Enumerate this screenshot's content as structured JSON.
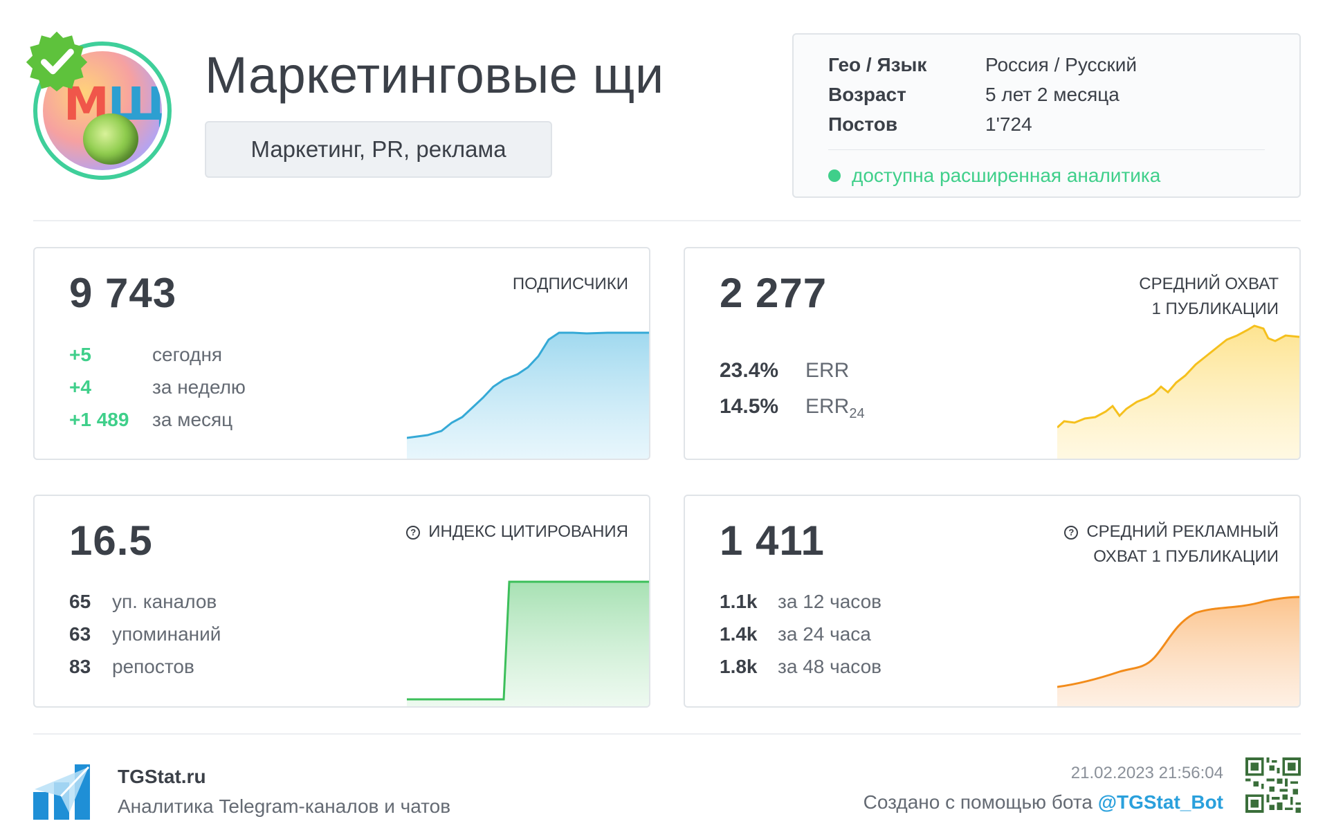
{
  "header": {
    "title": "Маркетинговые щи",
    "category": "Маркетинг, PR, реклама",
    "avatar_letters": [
      "М",
      "Щ"
    ]
  },
  "info": {
    "rows": [
      {
        "key": "Гео / Язык",
        "value": "Россия / Русский"
      },
      {
        "key": "Возраст",
        "value": "5 лет 2 месяца"
      },
      {
        "key": "Постов",
        "value": "1'724"
      }
    ],
    "status": "доступна расширенная аналитика"
  },
  "cards": {
    "subscribers": {
      "value": "9 743",
      "label": "ПОДПИСЧИКИ",
      "stats": [
        {
          "num": "+5",
          "text": "сегодня"
        },
        {
          "num": "+4",
          "text": "за неделю"
        },
        {
          "num": "+1 489",
          "text": "за месяц"
        }
      ],
      "color": "#35a9d6"
    },
    "reach": {
      "value": "2 277",
      "label_line1": "СРЕДНИЙ ОХВАТ",
      "label_line2": "1 ПУБЛИКАЦИИ",
      "err": {
        "num": "23.4%",
        "text": "ERR"
      },
      "err24": {
        "num": "14.5%",
        "text": "ERR",
        "sub": "24"
      },
      "color": "#f5c01d"
    },
    "citation": {
      "value": "16.5",
      "label": "ИНДЕКС ЦИТИРОВАНИЯ",
      "stats": [
        {
          "num": "65",
          "text": "уп. каналов"
        },
        {
          "num": "63",
          "text": "упоминаний"
        },
        {
          "num": "83",
          "text": "репостов"
        }
      ],
      "color": "#3cbf5a"
    },
    "ad_reach": {
      "value": "1 411",
      "label_line1": "СРЕДНИЙ РЕКЛАМНЫЙ",
      "label_line2": "ОХВАТ 1 ПУБЛИКАЦИИ",
      "stats": [
        {
          "num": "1.1k",
          "text": "за 12 часов"
        },
        {
          "num": "1.4k",
          "text": "за 24 часа"
        },
        {
          "num": "1.8k",
          "text": "за 48 часов"
        }
      ],
      "color": "#f28c1b"
    }
  },
  "footer": {
    "brand": "TGStat.ru",
    "tagline": "Аналитика Telegram-каналов и чатов",
    "timestamp": "21.02.2023 21:56:04",
    "created_prefix": "Создано с помощью бота ",
    "bot_handle": "@TGStat_Bot"
  }
}
